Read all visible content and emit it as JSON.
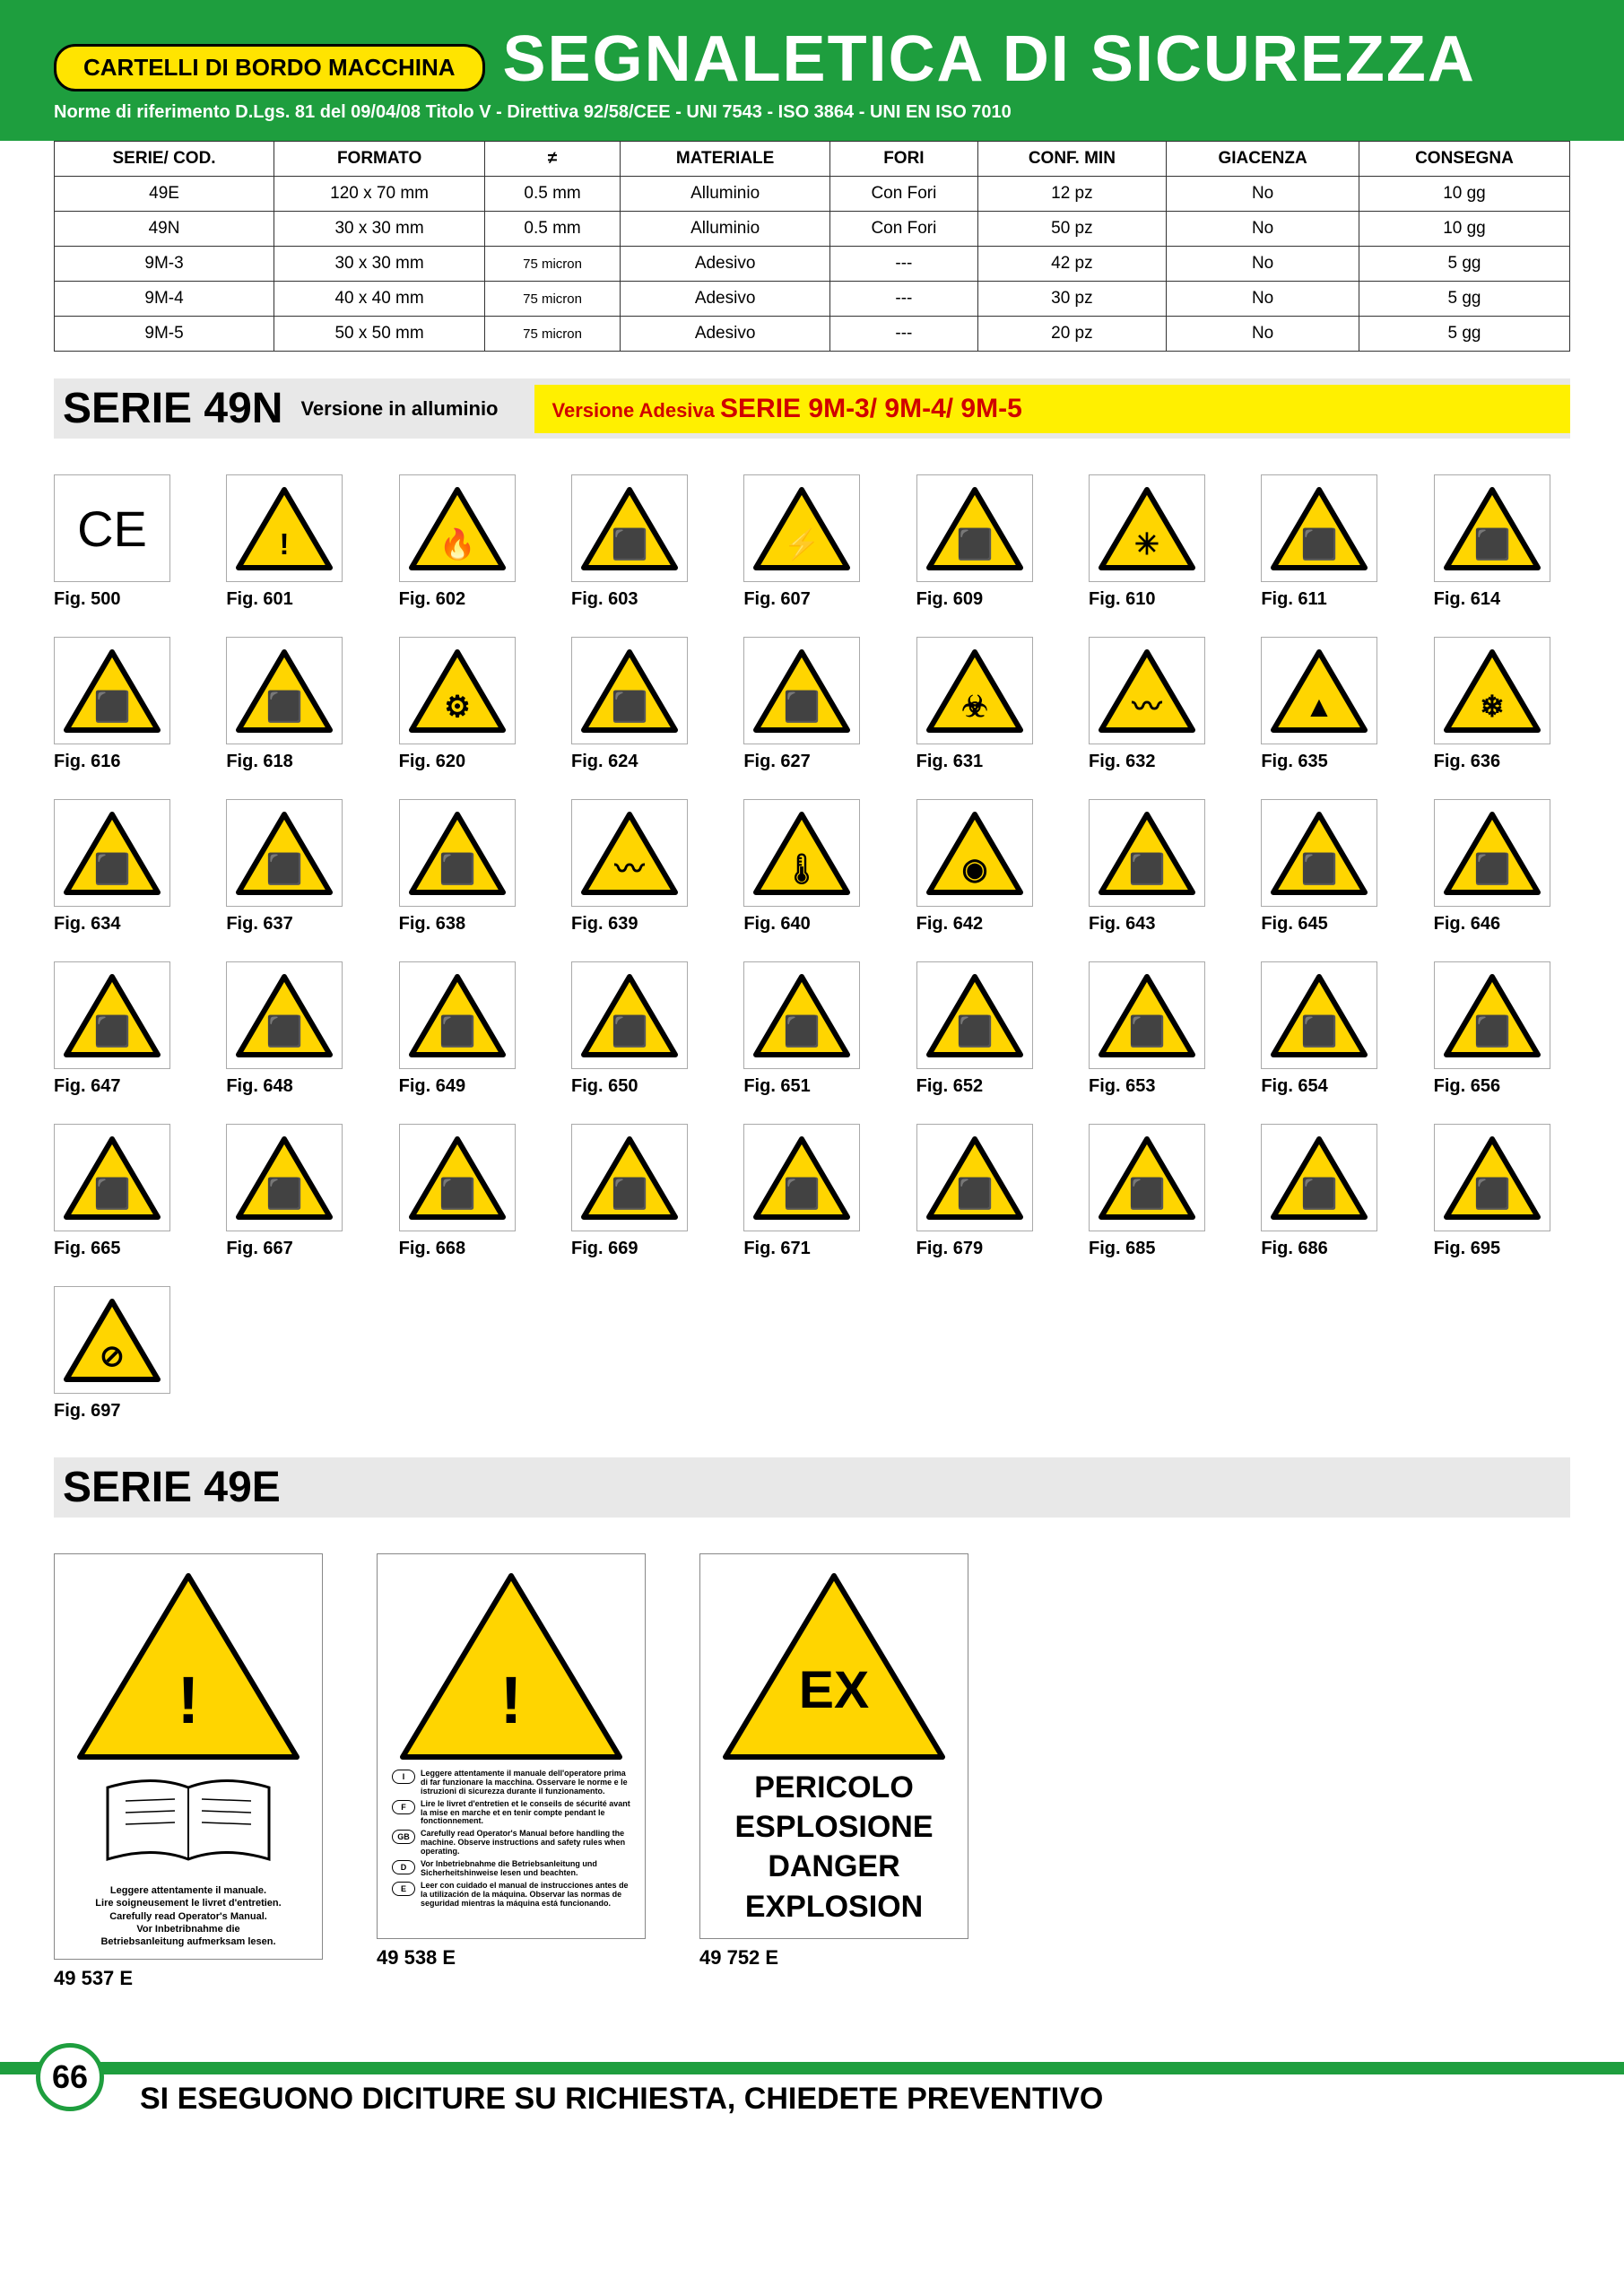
{
  "colors": {
    "green": "#1e9e3e",
    "yellow_badge": "#ffe400",
    "yellow_band": "#fff000",
    "sign_yellow": "#ffd500",
    "red_text": "#d00000",
    "border_gray": "#aaaaaa",
    "bg_gray": "#e8e8e8"
  },
  "header": {
    "badge": "CARTELLI DI BORDO MACCHINA",
    "title": "SEGNALETICA DI SICUREZZA",
    "subtitle": "Norme di riferimento D.Lgs. 81 del 09/04/08 Titolo V - Direttiva 92/58/CEE - UNI 7543 - ISO 3864 - UNI EN ISO 7010"
  },
  "table": {
    "headers": [
      "SERIE/ COD.",
      "FORMATO",
      "≠",
      "MATERIALE",
      "FORI",
      "CONF. MIN",
      "GIACENZA",
      "CONSEGNA"
    ],
    "rows": [
      [
        "49E",
        "120 x 70 mm",
        "0.5 mm",
        "Alluminio",
        "Con Fori",
        "12 pz",
        "No",
        "10 gg"
      ],
      [
        "49N",
        "30 x 30 mm",
        "0.5 mm",
        "Alluminio",
        "Con Fori",
        "50 pz",
        "No",
        "10 gg"
      ],
      [
        "9M-3",
        "30 x 30 mm",
        "75 micron",
        "Adesivo",
        "---",
        "42 pz",
        "No",
        "5 gg"
      ],
      [
        "9M-4",
        "40 x 40 mm",
        "75 micron",
        "Adesivo",
        "---",
        "30 pz",
        "No",
        "5 gg"
      ],
      [
        "9M-5",
        "50 x 50 mm",
        "75 micron",
        "Adesivo",
        "---",
        "20 pz",
        "No",
        "5 gg"
      ]
    ]
  },
  "section49n": {
    "title": "SERIE 49N",
    "sub": "Versione in alluminio",
    "band_pre": "Versione Adesiva",
    "band_title": "SERIE 9M-3/ 9M-4/ 9M-5"
  },
  "signs": [
    {
      "code": "Fig. 500",
      "type": "ce"
    },
    {
      "code": "Fig. 601",
      "type": "tri",
      "glyph": "!"
    },
    {
      "code": "Fig. 602",
      "type": "tri",
      "glyph": "🔥"
    },
    {
      "code": "Fig. 603",
      "type": "tri",
      "glyph": "⬛"
    },
    {
      "code": "Fig. 607",
      "type": "tri",
      "glyph": "⚡"
    },
    {
      "code": "Fig. 609",
      "type": "tri",
      "glyph": "⬛"
    },
    {
      "code": "Fig. 610",
      "type": "tri",
      "glyph": "✳"
    },
    {
      "code": "Fig. 611",
      "type": "tri",
      "glyph": "⬛"
    },
    {
      "code": "Fig. 614",
      "type": "tri",
      "glyph": "⬛"
    },
    {
      "code": "Fig. 616",
      "type": "tri",
      "glyph": "⬛"
    },
    {
      "code": "Fig. 618",
      "type": "tri",
      "glyph": "⬛"
    },
    {
      "code": "Fig. 620",
      "type": "tri",
      "glyph": "⚙"
    },
    {
      "code": "Fig. 624",
      "type": "tri",
      "glyph": "⬛"
    },
    {
      "code": "Fig. 627",
      "type": "tri",
      "glyph": "⬛"
    },
    {
      "code": "Fig. 631",
      "type": "tri",
      "glyph": "☣"
    },
    {
      "code": "Fig. 632",
      "type": "tri",
      "glyph": "〰"
    },
    {
      "code": "Fig. 635",
      "type": "tri",
      "glyph": "▲"
    },
    {
      "code": "Fig. 636",
      "type": "tri",
      "glyph": "❄"
    },
    {
      "code": "Fig. 634",
      "type": "tri",
      "glyph": "⬛"
    },
    {
      "code": "Fig. 637",
      "type": "tri",
      "glyph": "⬛"
    },
    {
      "code": "Fig. 638",
      "type": "tri",
      "glyph": "⬛"
    },
    {
      "code": "Fig. 639",
      "type": "tri",
      "glyph": "〰"
    },
    {
      "code": "Fig. 640",
      "type": "tri",
      "glyph": "🌡"
    },
    {
      "code": "Fig. 642",
      "type": "tri",
      "glyph": "◉"
    },
    {
      "code": "Fig. 643",
      "type": "tri",
      "glyph": "⬛"
    },
    {
      "code": "Fig. 645",
      "type": "tri",
      "glyph": "⬛"
    },
    {
      "code": "Fig. 646",
      "type": "tri",
      "glyph": "⬛"
    },
    {
      "code": "Fig. 647",
      "type": "tri",
      "glyph": "⬛"
    },
    {
      "code": "Fig. 648",
      "type": "tri",
      "glyph": "⬛"
    },
    {
      "code": "Fig. 649",
      "type": "tri",
      "glyph": "⬛"
    },
    {
      "code": "Fig. 650",
      "type": "tri",
      "glyph": "⬛"
    },
    {
      "code": "Fig. 651",
      "type": "tri",
      "glyph": "⬛"
    },
    {
      "code": "Fig. 652",
      "type": "tri",
      "glyph": "⬛"
    },
    {
      "code": "Fig. 653",
      "type": "tri",
      "glyph": "⬛"
    },
    {
      "code": "Fig. 654",
      "type": "tri",
      "glyph": "⬛"
    },
    {
      "code": "Fig. 656",
      "type": "tri",
      "glyph": "⬛"
    },
    {
      "code": "Fig. 665",
      "type": "tri",
      "glyph": "⬛"
    },
    {
      "code": "Fig. 667",
      "type": "tri",
      "glyph": "⬛"
    },
    {
      "code": "Fig. 668",
      "type": "tri",
      "glyph": "⬛"
    },
    {
      "code": "Fig. 669",
      "type": "tri",
      "glyph": "⬛"
    },
    {
      "code": "Fig. 671",
      "type": "tri",
      "glyph": "⬛"
    },
    {
      "code": "Fig. 679",
      "type": "tri",
      "glyph": "⬛"
    },
    {
      "code": "Fig. 685",
      "type": "tri",
      "glyph": "⬛"
    },
    {
      "code": "Fig. 686",
      "type": "tri",
      "glyph": "⬛"
    },
    {
      "code": "Fig. 695",
      "type": "tri",
      "glyph": "⬛"
    },
    {
      "code": "Fig. 697",
      "type": "tri",
      "glyph": "⊘"
    }
  ],
  "serie49e": {
    "title": "SERIE 49E",
    "items": [
      {
        "code": "49 537 E",
        "text": "Leggere attentamente il manuale.\nLire soigneusement le livret d'entretien.\nCarefully read Operator's Manual.\nVor Inbetribnahme die\nBetriebsanleitung aufmerksam lesen."
      },
      {
        "code": "49 538 E",
        "langs": [
          {
            "c": "I",
            "t": "Leggere attentamente il manuale dell'operatore prima di far funzionare la macchina. Osservare le norme e le istruzioni di sicurezza durante il funzionamento."
          },
          {
            "c": "F",
            "t": "Lire le livret d'entretien et le conseils de sécurité avant la mise en marche et en tenir compte pendant le fonctionnement."
          },
          {
            "c": "GB",
            "t": "Carefully read Operator's Manual before handling the machine. Observe instructions and safety rules when operating."
          },
          {
            "c": "D",
            "t": "Vor Inbetriebnahme die Betriebsanleitung und Sicherheitshinweise lesen und beachten."
          },
          {
            "c": "E",
            "t": "Leer con cuidado el manual de instrucciones antes de la utilización de la máquina. Observar las normas de seguridad mientras la máquina está funcionando."
          }
        ]
      },
      {
        "code": "49 752 E",
        "ex_label": "EX",
        "ex_lines": [
          "PERICOLO",
          "ESPLOSIONE",
          "DANGER",
          "EXPLOSION"
        ]
      }
    ]
  },
  "footer": {
    "page": "66",
    "text": "SI ESEGUONO DICITURE SU RICHIESTA, CHIEDETE PREVENTIVO"
  }
}
